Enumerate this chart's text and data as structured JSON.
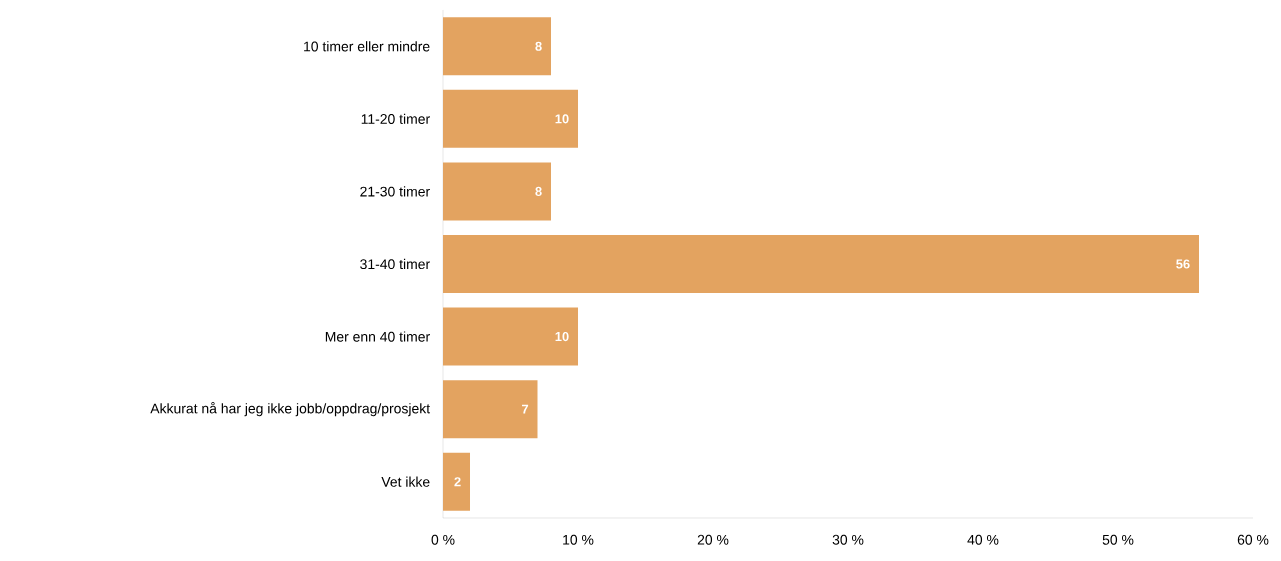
{
  "chart_data": {
    "type": "bar",
    "orientation": "horizontal",
    "categories": [
      "10 timer eller mindre",
      "11-20 timer",
      "21-30 timer",
      "31-40 timer",
      "Mer enn 40 timer",
      "Akkurat nå har jeg ikke jobb/oppdrag/prosjekt",
      "Vet ikke"
    ],
    "values": [
      8,
      10,
      8,
      56,
      10,
      7,
      2
    ],
    "color": "#e3a360",
    "xlim": [
      0,
      60
    ],
    "xticks": [
      {
        "value": 0,
        "label": "0 %"
      },
      {
        "value": 10,
        "label": "10 %"
      },
      {
        "value": 20,
        "label": "20 %"
      },
      {
        "value": 30,
        "label": "30 %"
      },
      {
        "value": 40,
        "label": "40 %"
      },
      {
        "value": 50,
        "label": "50 %"
      },
      {
        "value": 60,
        "label": "60 %"
      }
    ],
    "data_labels": true,
    "grid": false
  }
}
